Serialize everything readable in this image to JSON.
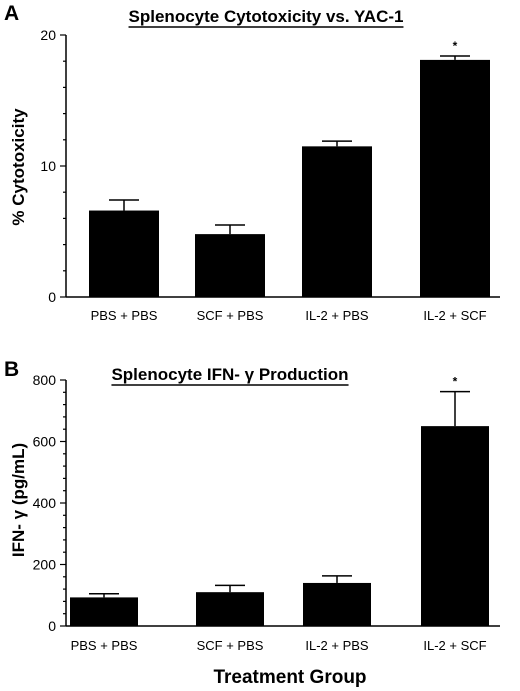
{
  "chart_data": [
    {
      "panel_label": "A",
      "type": "bar",
      "title": "Splenocyte  Cytotoxicity  vs.  YAC-1",
      "xlabel": "",
      "ylabel": "%  Cytotoxicity",
      "categories": [
        "PBS + PBS",
        "SCF + PBS",
        "IL-2 + PBS",
        "IL-2 + SCF"
      ],
      "values": [
        6.6,
        4.8,
        11.5,
        18.1
      ],
      "errors": [
        0.8,
        0.7,
        0.4,
        0.3
      ],
      "significance": [
        "",
        "",
        "",
        "*"
      ],
      "ylim": [
        0,
        20
      ],
      "yticks": [
        0,
        10,
        20
      ],
      "grid": false,
      "bar_color": "#000000"
    },
    {
      "panel_label": "B",
      "type": "bar",
      "title": "Splenocyte  IFN- γ  Production",
      "xlabel": "Treatment  Group",
      "ylabel": "IFN- γ   (pg/mL)",
      "categories": [
        "PBS + PBS",
        "SCF + PBS",
        "IL-2 + PBS",
        "IL-2 + SCF"
      ],
      "values": [
        93,
        110,
        140,
        650
      ],
      "errors": [
        12,
        22,
        23,
        112
      ],
      "significance": [
        "",
        "",
        "",
        "*"
      ],
      "ylim": [
        0,
        800
      ],
      "yticks": [
        0,
        200,
        400,
        600,
        800
      ],
      "grid": false,
      "bar_color": "#000000"
    }
  ]
}
